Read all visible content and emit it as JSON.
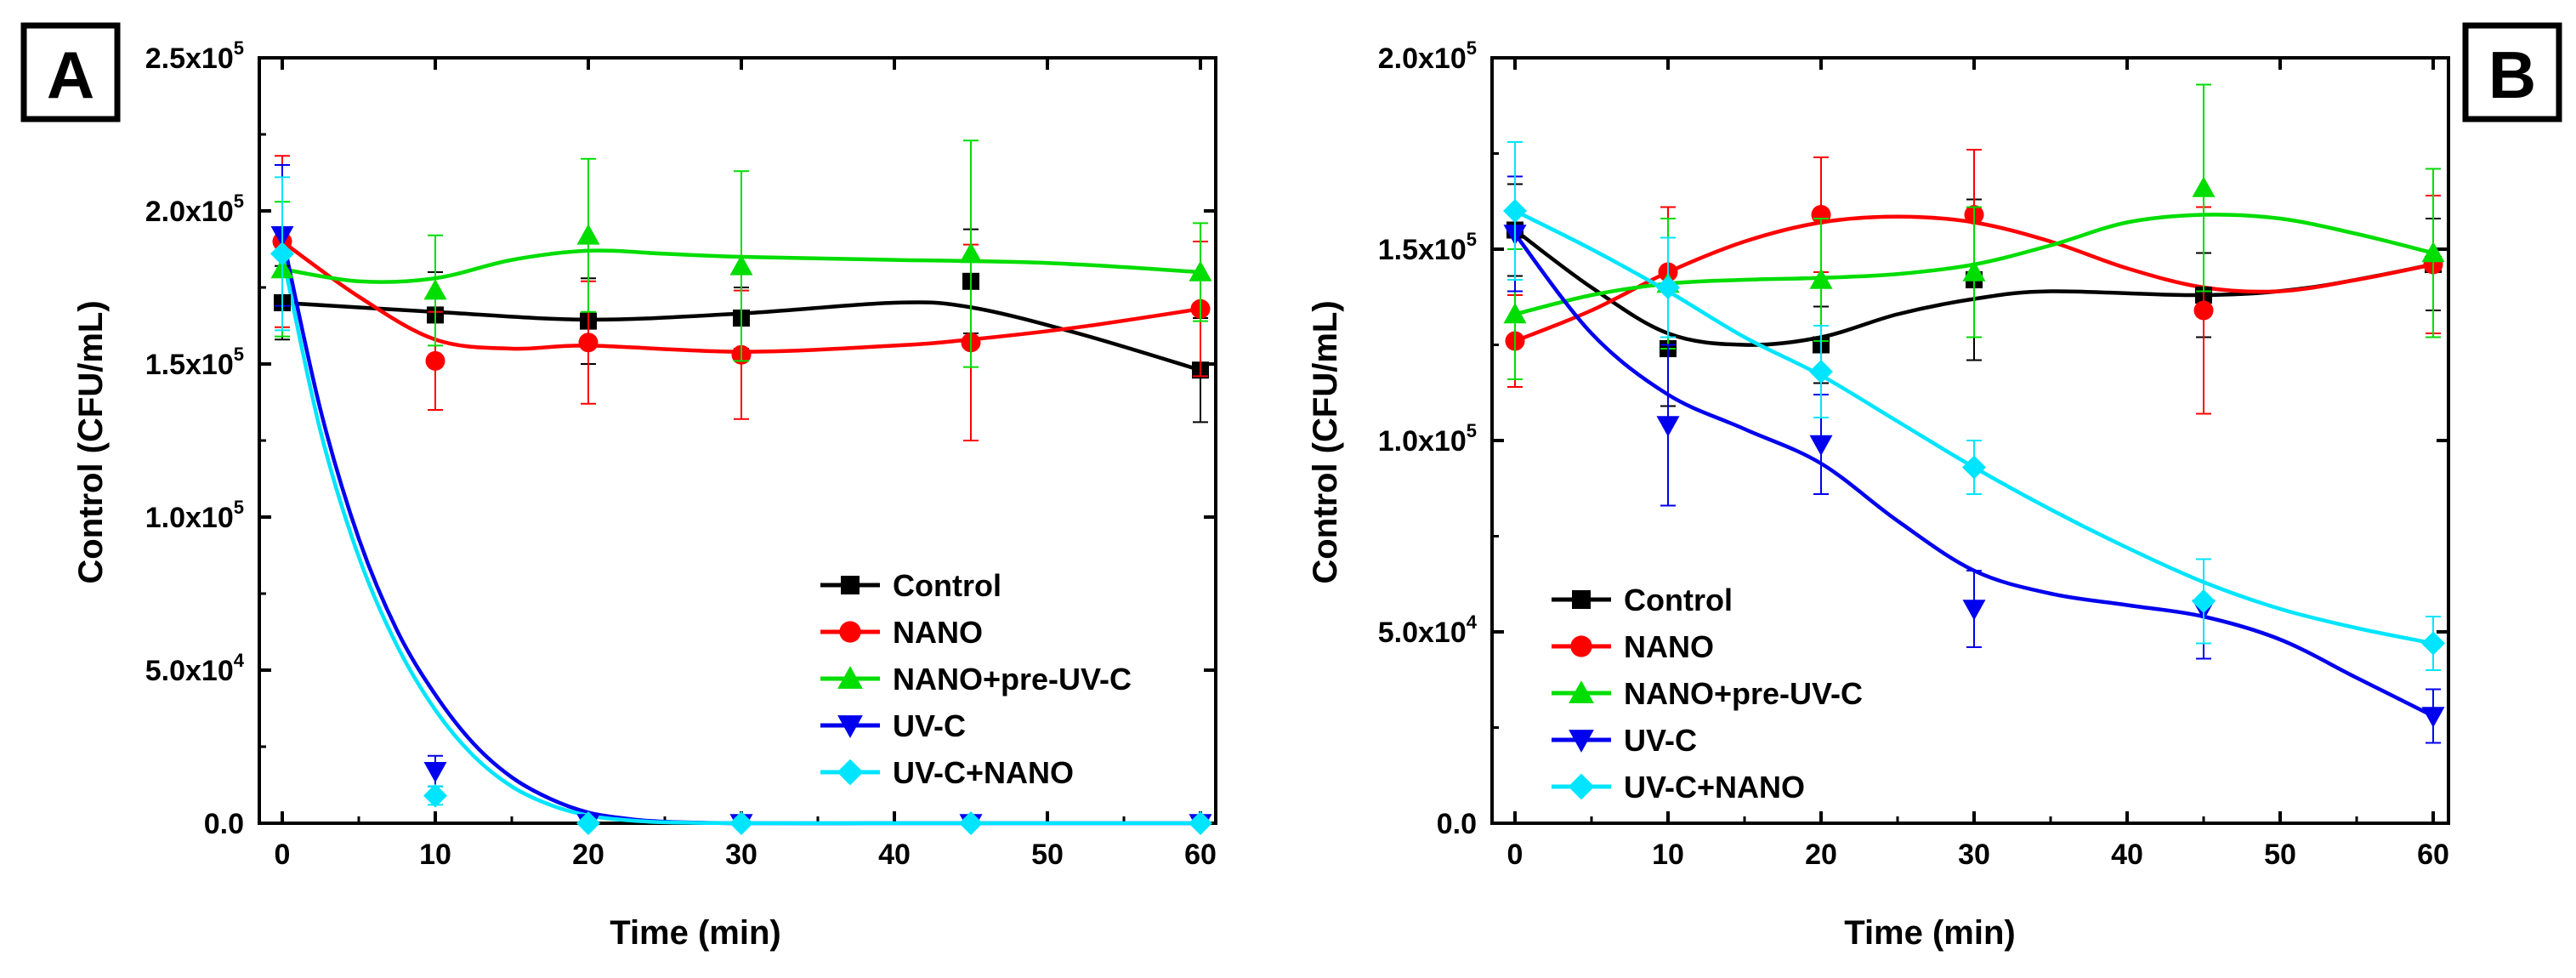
{
  "chart_data": [
    {
      "panel_label": "A",
      "type": "line",
      "xlabel": "Time (min)",
      "ylabel": "Control (CFU/mL)",
      "xlim": [
        -1.5,
        61
      ],
      "ylim": [
        0,
        250000
      ],
      "x_ticks": [
        0,
        10,
        20,
        30,
        40,
        50,
        60
      ],
      "y_ticks": [
        {
          "value": 0,
          "label": "0.0",
          "mantissa": "0.0",
          "exponent": ""
        },
        {
          "value": 50000,
          "label": "5.0x104",
          "mantissa": "5.0x10",
          "exponent": "4"
        },
        {
          "value": 100000,
          "label": "1.0x105",
          "mantissa": "1.0x10",
          "exponent": "5"
        },
        {
          "value": 150000,
          "label": "1.5x105",
          "mantissa": "1.5x10",
          "exponent": "5"
        },
        {
          "value": 200000,
          "label": "2.0x105",
          "mantissa": "2.0x10",
          "exponent": "5"
        },
        {
          "value": 250000,
          "label": "2.5x105",
          "mantissa": "2.5x10",
          "exponent": "5"
        }
      ],
      "legend_position": "center-right",
      "x": [
        0,
        10,
        20,
        30,
        45,
        60
      ],
      "series": [
        {
          "name": "Control",
          "color": "#000000",
          "marker": "square",
          "values": [
            170000,
            166000,
            164000,
            165000,
            177000,
            148000
          ],
          "errors": [
            12000,
            14000,
            14000,
            10000,
            17000,
            17000
          ]
        },
        {
          "name": "NANO",
          "color": "#ff0000",
          "marker": "circle",
          "values": [
            190000,
            151000,
            157000,
            153000,
            157000,
            168000
          ],
          "errors": [
            28000,
            16000,
            20000,
            21000,
            32000,
            22000
          ]
        },
        {
          "name": "NANO+pre-UV-C",
          "color": "#00dd00",
          "marker": "triangle-up",
          "values": [
            181000,
            174000,
            192000,
            182000,
            186000,
            180000
          ],
          "errors": [
            22000,
            18000,
            25000,
            31000,
            37000,
            16000
          ]
        },
        {
          "name": "UV-C",
          "color": "#0000ee",
          "marker": "triangle-down",
          "values": [
            192000,
            17000,
            0,
            0,
            0,
            0
          ],
          "errors": [
            23000,
            5000,
            0,
            0,
            0,
            0
          ]
        },
        {
          "name": "UV-C+NANO",
          "color": "#00e5ff",
          "marker": "diamond",
          "values": [
            186000,
            9000,
            0,
            0,
            0,
            0
          ],
          "errors": [
            25000,
            3000,
            0,
            0,
            0,
            0
          ]
        }
      ],
      "fit_curves": [
        {
          "series": "Control",
          "x": [
            0,
            10,
            20,
            30,
            40,
            45,
            52,
            60
          ],
          "y": [
            170000,
            167000,
            164500,
            166500,
            170000,
            168500,
            160000,
            148000
          ]
        },
        {
          "series": "NANO",
          "x": [
            0,
            5,
            10,
            15,
            20,
            30,
            40,
            45,
            52,
            60
          ],
          "y": [
            190000,
            172000,
            158000,
            155000,
            156000,
            154000,
            156000,
            158000,
            162000,
            168000
          ]
        },
        {
          "series": "NANO+pre-UV-C",
          "x": [
            0,
            5,
            10,
            15,
            20,
            25,
            30,
            40,
            50,
            60
          ],
          "y": [
            181000,
            177000,
            178000,
            184000,
            187000,
            186000,
            185000,
            184000,
            183000,
            180000
          ]
        },
        {
          "series": "UV-C",
          "x": [
            0,
            2.5,
            5,
            7.5,
            10,
            12.5,
            15,
            17.5,
            20,
            22.5,
            25,
            30,
            40,
            50,
            60
          ],
          "y": [
            192000,
            135000,
            93000,
            63000,
            42000,
            26000,
            15000,
            8000,
            3500,
            1500,
            500,
            0,
            0,
            0,
            0
          ]
        },
        {
          "series": "UV-C+NANO",
          "x": [
            0,
            2.5,
            5,
            7.5,
            10,
            12.5,
            15,
            17.5,
            20,
            22.5,
            25,
            30,
            40,
            50,
            60
          ],
          "y": [
            186000,
            128000,
            87000,
            58000,
            37000,
            22000,
            12000,
            6000,
            2500,
            1000,
            300,
            0,
            0,
            0,
            0
          ]
        }
      ]
    },
    {
      "panel_label": "B",
      "type": "line",
      "xlabel": "Time (min)",
      "ylabel": "Control (CFU/mL)",
      "xlim": [
        -1.5,
        61
      ],
      "ylim": [
        0,
        200000
      ],
      "x_ticks": [
        0,
        10,
        20,
        30,
        40,
        50,
        60
      ],
      "y_ticks": [
        {
          "value": 0,
          "label": "0.0",
          "mantissa": "0.0",
          "exponent": ""
        },
        {
          "value": 50000,
          "label": "5.0x104",
          "mantissa": "5.0x10",
          "exponent": "4"
        },
        {
          "value": 100000,
          "label": "1.0x105",
          "mantissa": "1.0x10",
          "exponent": "5"
        },
        {
          "value": 150000,
          "label": "1.5x105",
          "mantissa": "1.5x10",
          "exponent": "5"
        },
        {
          "value": 200000,
          "label": "2.0x105",
          "mantissa": "2.0x10",
          "exponent": "5"
        }
      ],
      "legend_position": "bottom-left",
      "x": [
        0,
        10,
        20,
        30,
        45,
        60
      ],
      "series": [
        {
          "name": "Control",
          "color": "#000000",
          "marker": "square",
          "values": [
            155000,
            124000,
            125000,
            142000,
            138000,
            146000
          ],
          "errors": [
            12000,
            15000,
            10000,
            21000,
            11000,
            12000
          ]
        },
        {
          "name": "NANO",
          "color": "#ff0000",
          "marker": "circle",
          "values": [
            126000,
            144000,
            159000,
            159000,
            134000,
            146000
          ],
          "errors": [
            12000,
            17000,
            15000,
            17000,
            27000,
            18000
          ]
        },
        {
          "name": "NANO+pre-UV-C",
          "color": "#00dd00",
          "marker": "triangle-up",
          "values": [
            133000,
            141000,
            142000,
            144000,
            166000,
            149000
          ],
          "errors": [
            17000,
            17000,
            16000,
            17000,
            27000,
            22000
          ]
        },
        {
          "name": "UV-C",
          "color": "#0000ee",
          "marker": "triangle-down",
          "values": [
            154000,
            104000,
            99000,
            56000,
            56000,
            28000
          ],
          "errors": [
            15000,
            21000,
            13000,
            10000,
            13000,
            7000
          ]
        },
        {
          "name": "UV-C+NANO",
          "color": "#00e5ff",
          "marker": "diamond",
          "values": [
            160000,
            140000,
            118000,
            93000,
            58000,
            47000
          ],
          "errors": [
            18000,
            13000,
            12000,
            7000,
            11000,
            7000
          ]
        }
      ],
      "fit_curves": [
        {
          "series": "Control",
          "x": [
            0,
            5,
            10,
            15,
            20,
            25,
            30,
            35,
            45,
            52,
            60
          ],
          "y": [
            155000,
            140000,
            128000,
            125000,
            127000,
            133000,
            137000,
            139000,
            138000,
            140000,
            146000
          ]
        },
        {
          "series": "NANO",
          "x": [
            0,
            5,
            10,
            15,
            20,
            25,
            30,
            35,
            40,
            45,
            50,
            55,
            60
          ],
          "y": [
            126000,
            134000,
            144000,
            152000,
            157000,
            158500,
            157000,
            152000,
            145000,
            140000,
            139000,
            142000,
            146000
          ]
        },
        {
          "series": "NANO+pre-UV-C",
          "x": [
            0,
            5,
            10,
            15,
            20,
            25,
            30,
            35,
            40,
            45,
            50,
            55,
            60
          ],
          "y": [
            133000,
            138000,
            141000,
            142000,
            142500,
            143500,
            146000,
            151000,
            157000,
            159000,
            158000,
            154000,
            149000
          ]
        },
        {
          "series": "UV-C",
          "x": [
            0,
            5,
            10,
            15,
            20,
            25,
            30,
            35,
            40,
            45,
            50,
            55,
            60
          ],
          "y": [
            154000,
            128000,
            112000,
            103000,
            94000,
            79000,
            66000,
            60000,
            57000,
            54000,
            48000,
            38000,
            28000
          ]
        },
        {
          "series": "UV-C+NANO",
          "x": [
            0,
            5,
            10,
            15,
            20,
            25,
            30,
            35,
            40,
            45,
            50,
            55,
            60
          ],
          "y": [
            160000,
            150000,
            139000,
            127000,
            117000,
            105000,
            93000,
            82000,
            72000,
            63000,
            56000,
            51000,
            47000
          ]
        }
      ]
    }
  ]
}
